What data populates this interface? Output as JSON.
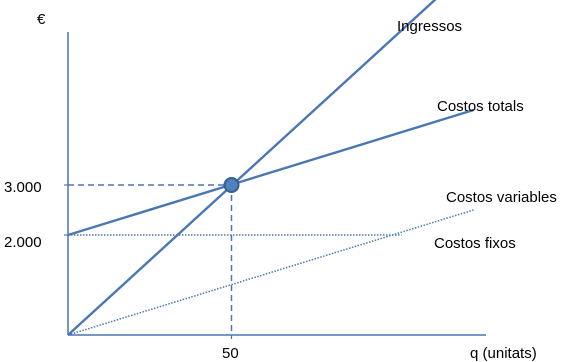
{
  "chart_data": {
    "type": "line",
    "title": "",
    "ylabel": "€",
    "xlabel": "q (unitats)",
    "x_ticks": [
      {
        "value": 50,
        "label": "50"
      }
    ],
    "y_ticks": [
      {
        "value": 2000,
        "label": "2.000"
      },
      {
        "value": 3000,
        "label": "3.000"
      }
    ],
    "xlim": [
      0,
      141
    ],
    "ylim": [
      0,
      5000
    ],
    "grid": false,
    "legend": "none",
    "series": [
      {
        "name": "Ingressos",
        "style": "solid",
        "x": [
          0,
          113
        ],
        "y": [
          0,
          6750
        ],
        "color": "#4a77b4"
      },
      {
        "name": "Costos totals",
        "style": "solid",
        "x": [
          0,
          124
        ],
        "y": [
          2000,
          4500
        ],
        "color": "#4a77b4"
      },
      {
        "name": "Costos variables",
        "style": "dotted",
        "x": [
          0,
          124
        ],
        "y": [
          0,
          2500
        ],
        "color": "#4a77b4"
      },
      {
        "name": "Costos fixos",
        "style": "dotted",
        "x": [
          0,
          102
        ],
        "y": [
          2000,
          2000
        ],
        "color": "#4a77b4"
      }
    ],
    "break_even": {
      "x": 50,
      "y": 3000
    },
    "colors": {
      "line": "#4a77b4",
      "axis": "#4a77b4",
      "marker_fill": "#4f81bd",
      "marker_stroke": "#385d8a"
    }
  }
}
